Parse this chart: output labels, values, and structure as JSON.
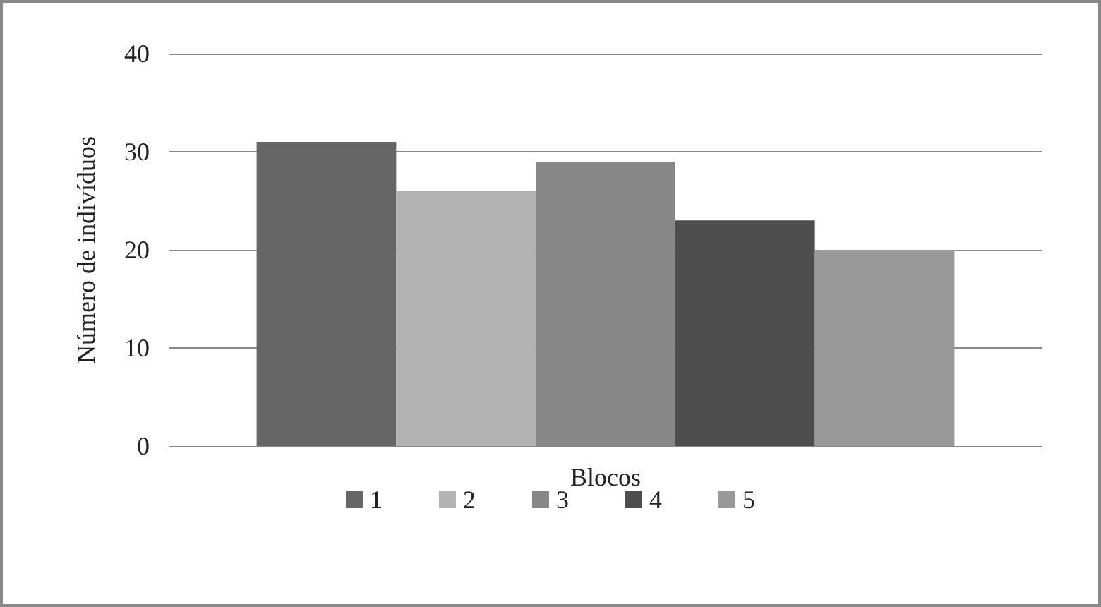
{
  "chart_data": {
    "type": "bar",
    "categories": [
      null
    ],
    "series": [
      {
        "name": "1",
        "color": "#666666",
        "values": [
          31
        ]
      },
      {
        "name": "2",
        "color": "#b3b3b3",
        "values": [
          26
        ]
      },
      {
        "name": "3",
        "color": "#878787",
        "values": [
          29
        ]
      },
      {
        "name": "4",
        "color": "#4d4d4d",
        "values": [
          23
        ]
      },
      {
        "name": "5",
        "color": "#999999",
        "values": [
          20
        ]
      }
    ],
    "xlabel": "Blocos",
    "ylabel": "Número de indivíduos",
    "ylim": [
      0,
      40
    ],
    "yticks": [
      0,
      10,
      20,
      30,
      40
    ],
    "grid": "y",
    "legend": "bottom"
  }
}
